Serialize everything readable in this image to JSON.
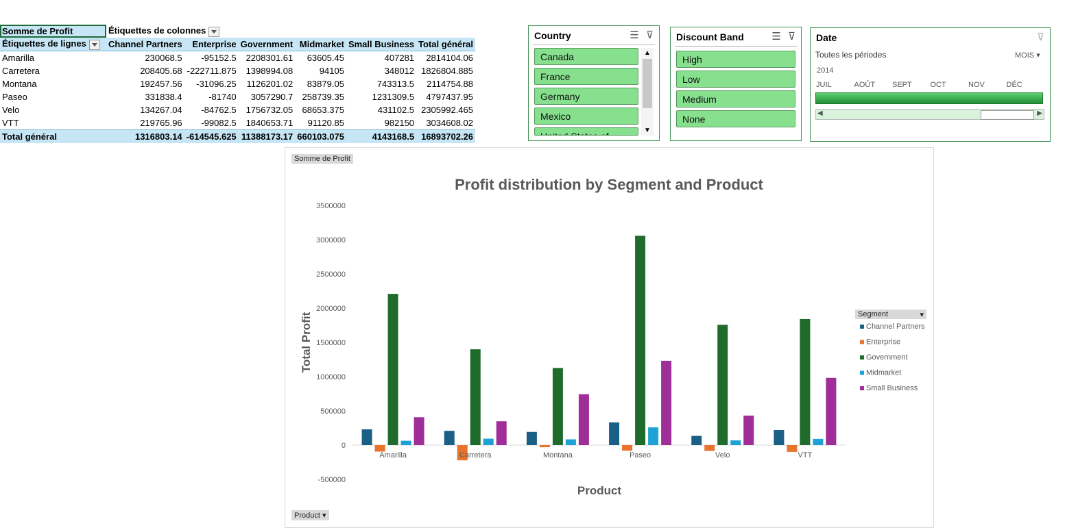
{
  "pivot": {
    "corner_label": "Somme de Profit",
    "col_labels_header": "Étiquettes de colonnes",
    "row_labels_header": "Étiquettes de lignes",
    "columns": [
      "Channel Partners",
      "Enterprise",
      "Government",
      "Midmarket",
      "Small Business",
      "Total général"
    ],
    "rows": [
      {
        "label": "Amarilla",
        "values": [
          "230068.5",
          "-95152.5",
          "2208301.61",
          "63605.45",
          "407281",
          "2814104.06"
        ]
      },
      {
        "label": "Carretera",
        "values": [
          "208405.68",
          "-222711.875",
          "1398994.08",
          "94105",
          "348012",
          "1826804.885"
        ]
      },
      {
        "label": "Montana",
        "values": [
          "192457.56",
          "-31096.25",
          "1126201.02",
          "83879.05",
          "743313.5",
          "2114754.88"
        ]
      },
      {
        "label": "Paseo",
        "values": [
          "331838.4",
          "-81740",
          "3057290.7",
          "258739.35",
          "1231309.5",
          "4797437.95"
        ]
      },
      {
        "label": "Velo",
        "values": [
          "134267.04",
          "-84762.5",
          "1756732.05",
          "68653.375",
          "431102.5",
          "2305992.465"
        ]
      },
      {
        "label": "VTT",
        "values": [
          "219765.96",
          "-99082.5",
          "1840653.71",
          "91120.85",
          "982150",
          "3034608.02"
        ]
      }
    ],
    "total": {
      "label": "Total général",
      "values": [
        "1316803.14",
        "-614545.625",
        "11388173.17",
        "660103.075",
        "4143168.5",
        "16893702.26"
      ]
    }
  },
  "slicers": {
    "country": {
      "title": "Country",
      "items": [
        "Canada",
        "France",
        "Germany",
        "Mexico",
        "United States of America"
      ]
    },
    "discount": {
      "title": "Discount Band",
      "items": [
        "High",
        "Low",
        "Medium",
        "None"
      ]
    }
  },
  "timeline": {
    "title": "Date",
    "period_label": "Toutes les périodes",
    "level": "MOIS",
    "year": "2014",
    "months": [
      "JUIL",
      "AOÛT",
      "SEPT",
      "OCT",
      "NOV",
      "DÉC"
    ]
  },
  "chart_buttons": {
    "value_field": "Somme de Profit",
    "axis_field": "Product",
    "legend_field": "Segment"
  },
  "chart_data": {
    "type": "bar",
    "title": "Profit distribution by Segment and Product",
    "xlabel": "Product",
    "ylabel": "Total Profit",
    "categories": [
      "Amarilla",
      "Carretera",
      "Montana",
      "Paseo",
      "Velo",
      "VTT"
    ],
    "ylim": [
      -500000,
      3500000
    ],
    "yticks": [
      -500000,
      0,
      500000,
      1000000,
      1500000,
      2000000,
      2500000,
      3000000,
      3500000
    ],
    "legend": "right",
    "series": [
      {
        "name": "Channel Partners",
        "color": "#1a5f86",
        "values": [
          230068.5,
          208405.68,
          192457.56,
          331838.4,
          134267.04,
          219765.96
        ]
      },
      {
        "name": "Enterprise",
        "color": "#e8732c",
        "values": [
          -95152.5,
          -222711.875,
          -31096.25,
          -81740,
          -84762.5,
          -99082.5
        ]
      },
      {
        "name": "Government",
        "color": "#1e6b2b",
        "values": [
          2208301.61,
          1398994.08,
          1126201.02,
          3057290.7,
          1756732.05,
          1840653.71
        ]
      },
      {
        "name": "Midmarket",
        "color": "#1ea2d6",
        "values": [
          63605.45,
          94105,
          83879.05,
          258739.35,
          68653.375,
          91120.85
        ]
      },
      {
        "name": "Small Business",
        "color": "#a02e98",
        "values": [
          407281,
          348012,
          743313.5,
          1231309.5,
          431102.5,
          982150
        ]
      }
    ]
  }
}
